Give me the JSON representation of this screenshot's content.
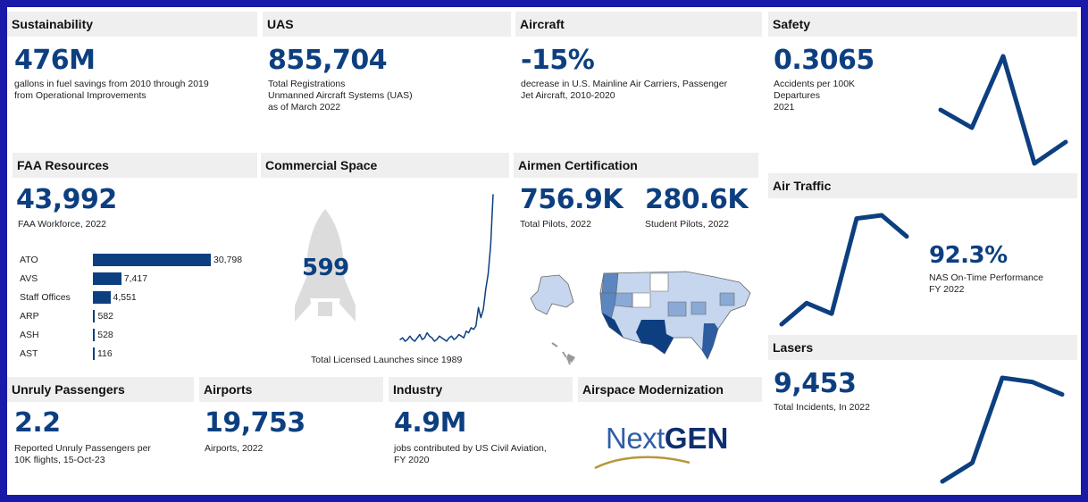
{
  "sustainability": {
    "title": "Sustainability",
    "value": "476M",
    "desc": [
      "gallons in fuel savings from 2010 through 2019",
      "from Operational Improvements"
    ]
  },
  "uas": {
    "title": "UAS",
    "value": "855,704",
    "desc": [
      "Total Registrations",
      "Unmanned Aircraft Systems (UAS)",
      "as of March 2022"
    ]
  },
  "aircraft": {
    "title": "Aircraft",
    "value": "-15%",
    "desc": [
      "decrease in U.S. Mainline Air Carriers, Passenger",
      "Jet Aircraft, 2010-2020"
    ]
  },
  "safety": {
    "title": "Safety",
    "value": "0.3065",
    "desc": [
      "Accidents per 100K",
      "Departures",
      "2021"
    ]
  },
  "faa_resources": {
    "title": "FAA Resources",
    "value": "43,992",
    "desc": [
      "FAA Workforce, 2022"
    ],
    "bars": [
      {
        "label": "ATO",
        "value": 30798,
        "value_text": "30,798"
      },
      {
        "label": "AVS",
        "value": 7417,
        "value_text": "7,417"
      },
      {
        "label": "Staff Offices",
        "value": 4551,
        "value_text": "4,551"
      },
      {
        "label": "ARP",
        "value": 582,
        "value_text": "582"
      },
      {
        "label": "ASH",
        "value": 528,
        "value_text": "528"
      },
      {
        "label": "AST",
        "value": 116,
        "value_text": "116"
      }
    ]
  },
  "commercial_space": {
    "title": "Commercial Space",
    "value": "599",
    "desc": [
      "Total Licensed Launches since 1989"
    ]
  },
  "airmen": {
    "title": "Airmen Certification",
    "pilots_value": "756.9K",
    "pilots_desc": [
      "Total Pilots, 2022"
    ],
    "students_value": "280.6K",
    "students_desc": [
      "Student Pilots, 2022"
    ]
  },
  "air_traffic": {
    "title": "Air Traffic",
    "value": "92.3%",
    "desc": [
      "NAS On-Time Performance",
      "FY 2022"
    ]
  },
  "lasers": {
    "title": "Lasers",
    "value": "9,453",
    "desc": [
      "Total Incidents, In 2022"
    ]
  },
  "unruly": {
    "title": "Unruly Passengers",
    "value": "2.2",
    "desc": [
      "Reported Unruly Passengers per",
      "10K flights, 15-Oct-23"
    ]
  },
  "airports": {
    "title": "Airports",
    "value": "19,753",
    "desc": [
      "Airports, 2022"
    ]
  },
  "industry": {
    "title": "Industry",
    "value": "4.9M",
    "desc": [
      "jobs contributed by US Civil Aviation,",
      "FY 2020"
    ]
  },
  "airspace": {
    "title": "Airspace Modernization",
    "logo_text_1": "Next",
    "logo_text_2": "GEN"
  },
  "colors": {
    "accent": "#0d3f80",
    "header_bg": "#efefef",
    "frame": "#1a1aa8"
  },
  "chart_data": [
    {
      "type": "bar",
      "categories": [
        "ATO",
        "AVS",
        "Staff Offices",
        "ARP",
        "ASH",
        "AST"
      ],
      "values": [
        30798,
        7417,
        4551,
        582,
        528,
        116
      ]
    },
    {
      "type": "line",
      "series": [
        {
          "values": [
            0.4,
            0.35,
            0.55,
            0.25,
            0.31
          ]
        }
      ]
    },
    {
      "type": "line",
      "series": [
        {
          "values": [
            84,
            86,
            85,
            94,
            94.3,
            92.3
          ]
        }
      ]
    },
    {
      "type": "line",
      "series": [
        {
          "values": [
            3000,
            3900,
            8000,
            7800,
            7200
          ]
        }
      ]
    },
    {
      "type": "line",
      "series": [
        {
          "values": [
            1,
            2,
            0,
            1,
            3,
            1,
            0,
            2,
            4,
            1,
            2,
            5,
            3,
            2,
            0,
            1,
            3,
            2,
            1,
            0,
            2,
            3,
            1,
            2,
            4,
            3,
            2,
            6,
            5,
            8,
            7,
            9,
            20,
            14,
            19,
            31,
            40,
            57,
            87
          ]
        }
      ]
    }
  ]
}
